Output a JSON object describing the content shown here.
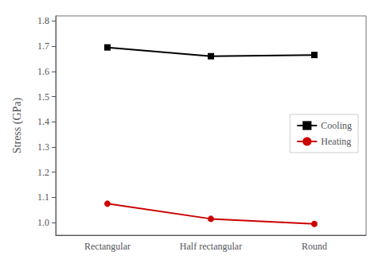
{
  "chart_data": {
    "type": "line",
    "categories": [
      "Rectangular",
      "Half rectangular",
      "Round"
    ],
    "series": [
      {
        "name": "Cooling",
        "color": "#000000",
        "marker": "square",
        "line_style": "solid",
        "values": [
          1.695,
          1.66,
          1.665
        ]
      },
      {
        "name": "Heating",
        "color": "#cc0000",
        "marker": "circle",
        "line_style": "solid",
        "values": [
          1.075,
          1.015,
          0.995
        ]
      }
    ],
    "ylabel": "Stress (GPa)",
    "ylim": [
      0.95,
      1.82
    ],
    "yticks": [
      {
        "value": 1.0,
        "label": "1.0"
      },
      1.1,
      1.2,
      1.3,
      1.4,
      1.5,
      1.6,
      1.7,
      1.8
    ],
    "legend": "right",
    "grid": false
  }
}
